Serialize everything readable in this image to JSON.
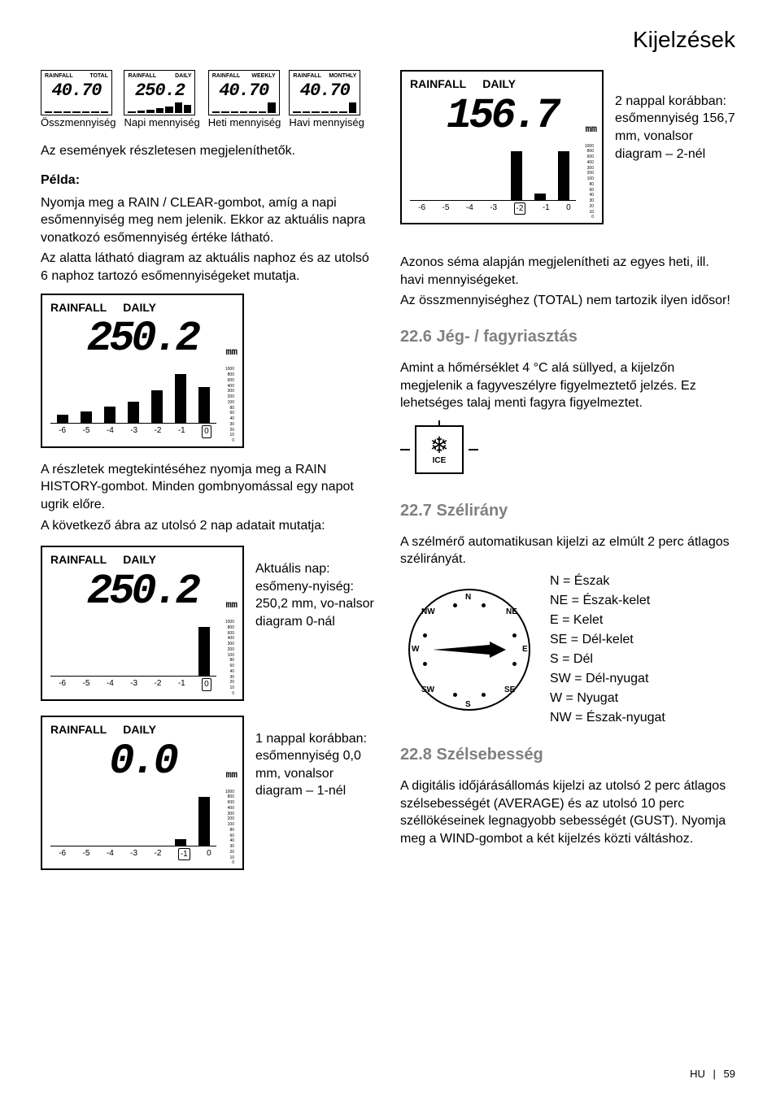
{
  "header": {
    "title": "Kijelzések"
  },
  "thumbs": [
    {
      "top_l": "RAINFALL",
      "top_r": "TOTAL",
      "val": "40.70",
      "caption": "Összmennyiség"
    },
    {
      "top_l": "RAINFALL",
      "top_r": "DAILY",
      "val": "250.2",
      "caption": "Napi mennyiség"
    },
    {
      "top_l": "RAINFALL",
      "top_r": "WEEKLY",
      "val": "40.70",
      "caption": "Heti mennyiség"
    },
    {
      "top_l": "RAINFALL",
      "top_r": "MONTHLY",
      "val": "40.70",
      "caption": "Havi mennyiség"
    }
  ],
  "left": {
    "intro": "Az események részletesen megjeleníthetők.",
    "example_h": "Példa:",
    "example_p1": "Nyomja meg a RAIN / CLEAR-gombot, amíg a napi esőmennyiség meg nem jelenik. Ekkor az aktuális napra vonatkozó esőmennyiség értéke látható.",
    "example_p2": "Az alatta látható diagram az aktuális naphoz és az utolsó 6 naphoz tartozó esőmennyiségeket mutatja.",
    "lcd1": {
      "l1": "RAINFALL",
      "l2": "DAILY",
      "val": "250.2",
      "unit": "mm",
      "hl": "0"
    },
    "mid1": "A részletek megtekintéséhez nyomja meg a RAIN HISTORY-gombot. Minden gombnyomással egy napot ugrik előre.",
    "mid2": "A következő ábra az utolsó 2 nap adatait mutatja:",
    "lcd2": {
      "l1": "RAINFALL",
      "l2": "DAILY",
      "val": "250.2",
      "unit": "mm",
      "hl": "0",
      "side": "Aktuális nap: esőmeny-nyiség: 250,2 mm, vo-nalsor diagram 0-nál"
    },
    "lcd3": {
      "l1": "RAINFALL",
      "l2": "DAILY",
      "val": "0.0",
      "unit": "mm",
      "hl": "-1",
      "side": "1 nappal korábban: esőmennyiség 0,0 mm, vonalsor diagram – 1-nél"
    }
  },
  "right": {
    "lcd4": {
      "l1": "RAINFALL",
      "l2": "DAILY",
      "val": "156.7",
      "unit": "mm",
      "hl": "-2",
      "side": "2 nappal korábban: esőmennyiség 156,7 mm, vonalsor diagram – 2-nél"
    },
    "scheme1": "Azonos séma alapján megjelenítheti az egyes heti, ill. havi mennyiségeket.",
    "scheme2": "Az összmennyiséghez (TOTAL) nem tartozik ilyen idősor!",
    "s226_h": "22.6 Jég- / fagyriasztás",
    "s226_p": "Amint a hőmérséklet 4 °C alá süllyed, a kijelzőn megjelenik a fagyveszélyre figyelmeztető jelzés. Ez lehetséges talaj menti fagyra figyelmeztet.",
    "ice": "ICE",
    "s227_h": "22.7 Szélirány",
    "s227_p": "A szélmérő automatikusan kijelzi az elmúlt 2 perc átlagos szélirányát.",
    "compass": {
      "N": "N",
      "NE": "NE",
      "E": "E",
      "SE": "SE",
      "S": "S",
      "SW": "SW",
      "W": "W",
      "NW": "NW"
    },
    "dirs": {
      "n": "N = Észak",
      "ne": "NE = Észak-kelet",
      "e": "E = Kelet",
      "se": "SE = Dél-kelet",
      "s": "S = Dél",
      "sw": "SW = Dél-nyugat",
      "w": "W = Nyugat",
      "nw": "NW = Észak-nyugat"
    },
    "s228_h": "22.8 Szélsebesség",
    "s228_p": "A digitális időjárásállomás kijelzi az utolsó 2 perc átlagos szélsebességét (AVERAGE) és az utolsó 10 perc széllökéseinek legnagyobb sebességét (GUST). Nyomja meg a WIND-gombot a két kijelzés közti váltáshoz."
  },
  "xlabels": [
    "-6",
    "-5",
    "-4",
    "-3",
    "-2",
    "-1",
    "0"
  ],
  "scale": [
    "1000",
    "800",
    "600",
    "400",
    "300",
    "200",
    "100",
    "80",
    "60",
    "40",
    "30",
    "20",
    "10",
    "0"
  ],
  "footer": {
    "lang": "HU",
    "page": "59"
  },
  "bars": {
    "lcd1": [
      10,
      14,
      20,
      26,
      40,
      60,
      44
    ],
    "lcd2": [
      0,
      0,
      0,
      0,
      0,
      0,
      60
    ],
    "lcd3": [
      0,
      0,
      0,
      0,
      0,
      8,
      60
    ],
    "lcd4": [
      0,
      0,
      0,
      0,
      60,
      8,
      60
    ]
  }
}
